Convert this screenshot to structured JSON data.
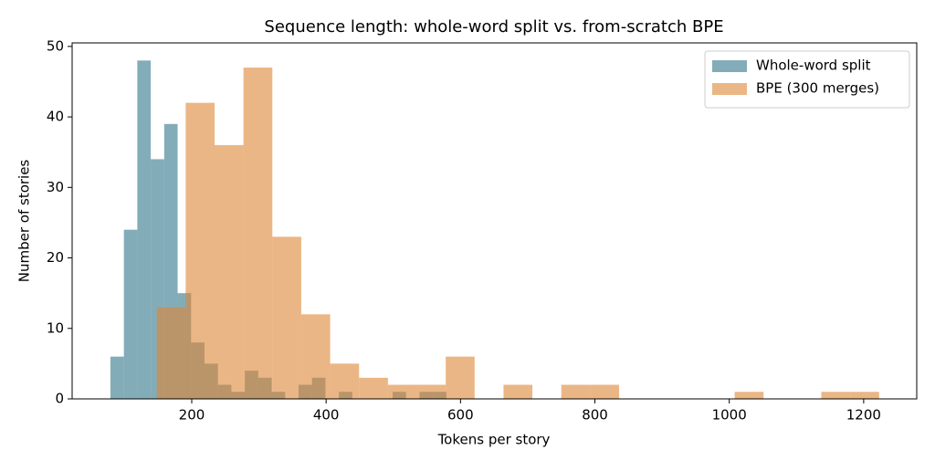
{
  "chart_data": {
    "type": "histogram",
    "title": "Sequence length: whole-word split vs. from-scratch BPE",
    "x_label": "Tokens per story",
    "y_label": "Number of stories",
    "xlim": [
      22,
      1279
    ],
    "ylim": [
      0,
      50.5
    ],
    "xticks": [
      200,
      400,
      600,
      800,
      1000,
      1200
    ],
    "yticks": [
      0,
      10,
      20,
      30,
      40,
      50
    ],
    "alpha": 0.6,
    "legend": "upper right",
    "grid": false,
    "series": [
      {
        "name": "Whole-word split",
        "color": "#31748a",
        "bins": [
          79,
          99,
          119,
          139,
          159,
          179,
          199,
          219,
          239,
          259,
          279,
          299,
          319,
          339,
          359,
          379,
          399,
          419,
          439,
          459,
          479,
          499,
          519,
          539,
          559,
          579
        ],
        "values": [
          6,
          24,
          48,
          34,
          39,
          15,
          8,
          5,
          2,
          1,
          4,
          3,
          1,
          0,
          2,
          3,
          0,
          1,
          0,
          0,
          0,
          1,
          0,
          1,
          1
        ]
      },
      {
        "name": "BPE (300 merges)",
        "color": "#dd8533",
        "bins": [
          148,
          191,
          234,
          277,
          320,
          363,
          406,
          449,
          492,
          535,
          578,
          621,
          664,
          707,
          750,
          793,
          836,
          879,
          922,
          965,
          1008,
          1051,
          1094,
          1137,
          1180,
          1223
        ],
        "values": [
          13,
          42,
          36,
          47,
          23,
          12,
          5,
          3,
          2,
          2,
          6,
          0,
          2,
          0,
          2,
          2,
          0,
          0,
          0,
          0,
          1,
          0,
          0,
          1,
          1
        ]
      }
    ]
  }
}
